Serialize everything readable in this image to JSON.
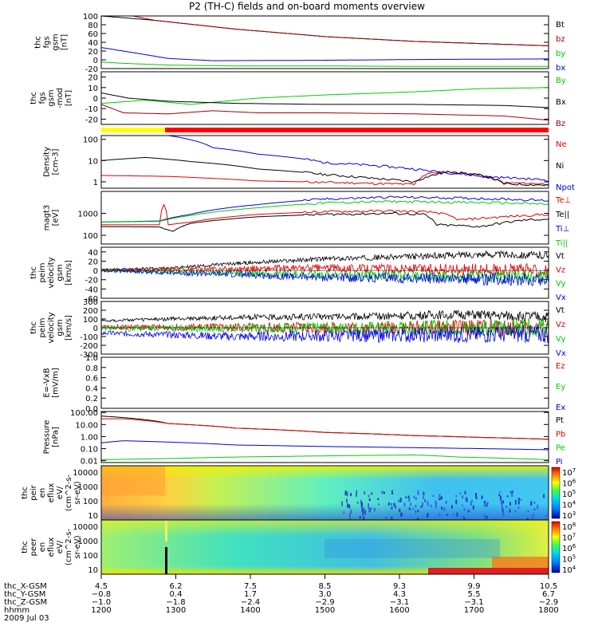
{
  "title": "P2 (TH-C) fields and on-board moments overview",
  "colors": {
    "black": "#000000",
    "red": "#e00000",
    "green": "#00cc00",
    "blue": "#0000e0",
    "darkred": "#a00000",
    "yellow": "#ffff00"
  },
  "chart_data": [
    {
      "type": "line",
      "ylabel": [
        "thc",
        "fgs",
        "gsm",
        "[nT]"
      ],
      "ylim": [
        -20,
        100
      ],
      "yticks": [
        "100",
        "80",
        "60",
        "40",
        "20",
        "0",
        "-20"
      ],
      "series": [
        {
          "name": "Bt",
          "color": "black",
          "values": [
            [
              0,
              100
            ],
            [
              0.12,
              90
            ],
            [
              0.3,
              70
            ],
            [
              0.5,
              53
            ],
            [
              0.7,
              42
            ],
            [
              0.85,
              37
            ],
            [
              1,
              32
            ]
          ]
        },
        {
          "name": "bz",
          "color": "darkred",
          "values": [
            [
              0.07,
              100
            ],
            [
              0.12,
              90
            ],
            [
              0.3,
              70
            ],
            [
              0.5,
              53
            ],
            [
              0.7,
              42
            ],
            [
              0.85,
              37
            ],
            [
              1,
              32
            ]
          ]
        },
        {
          "name": "by",
          "color": "green",
          "values": [
            [
              0,
              -5
            ],
            [
              0.05,
              -8
            ],
            [
              0.15,
              -12
            ],
            [
              0.3,
              -14
            ],
            [
              0.5,
              -14
            ],
            [
              0.7,
              -15
            ],
            [
              1,
              -15
            ]
          ]
        },
        {
          "name": "bx",
          "color": "blue",
          "values": [
            [
              0,
              28
            ],
            [
              0.08,
              15
            ],
            [
              0.15,
              3
            ],
            [
              0.25,
              -2
            ],
            [
              0.5,
              -1
            ],
            [
              0.75,
              1
            ],
            [
              1,
              2
            ]
          ]
        }
      ]
    },
    {
      "type": "line",
      "ylabel": [
        "thc",
        "fgs",
        "gsm",
        "-mod",
        "[nT]"
      ],
      "ylim": [
        -25,
        25
      ],
      "yticks": [
        "20",
        "10",
        "0",
        "-10",
        "-20"
      ],
      "series": [
        {
          "name": "By",
          "color": "green",
          "values": [
            [
              0,
              -5
            ],
            [
              0.1,
              -2
            ],
            [
              0.2,
              -6
            ],
            [
              0.35,
              0
            ],
            [
              0.5,
              3
            ],
            [
              0.7,
              6
            ],
            [
              0.85,
              9
            ],
            [
              1,
              10
            ]
          ]
        },
        {
          "name": "Bx",
          "color": "black",
          "values": [
            [
              0,
              5
            ],
            [
              0.06,
              0
            ],
            [
              0.15,
              -3
            ],
            [
              0.3,
              -5
            ],
            [
              0.5,
              -6
            ],
            [
              0.7,
              -6
            ],
            [
              0.9,
              -7
            ],
            [
              1,
              -9
            ]
          ]
        },
        {
          "name": "Bz",
          "color": "darkred",
          "values": [
            [
              0,
              -6
            ],
            [
              0.05,
              -14
            ],
            [
              0.15,
              -15
            ],
            [
              0.25,
              -12
            ],
            [
              0.35,
              -14
            ],
            [
              0.5,
              -14
            ],
            [
              0.7,
              -15
            ],
            [
              0.9,
              -17
            ],
            [
              1,
              -21
            ]
          ]
        }
      ]
    },
    {
      "type": "line",
      "ylabel": [
        "Density",
        "[cm-3]"
      ],
      "ylog": true,
      "ylim": [
        0.5,
        150
      ],
      "yticks": [
        "100",
        "10",
        "1"
      ],
      "series": [
        {
          "name": "Ne",
          "color": "red",
          "values": [
            [
              0,
              2
            ],
            [
              0.15,
              1.8
            ],
            [
              0.35,
              1.1
            ],
            [
              0.6,
              0.85
            ],
            [
              0.7,
              0.75
            ],
            [
              0.73,
              2.5
            ],
            [
              0.78,
              3
            ],
            [
              0.85,
              2
            ],
            [
              0.9,
              0.9
            ],
            [
              1,
              0.8
            ]
          ]
        },
        {
          "name": "Ni",
          "color": "black",
          "values": [
            [
              0,
              10
            ],
            [
              0.1,
              14
            ],
            [
              0.2,
              9
            ],
            [
              0.35,
              4
            ],
            [
              0.5,
              2.2
            ],
            [
              0.6,
              1.5
            ],
            [
              0.7,
              1
            ],
            [
              0.78,
              3
            ],
            [
              0.85,
              2
            ],
            [
              0.9,
              0.8
            ],
            [
              1,
              0.7
            ]
          ]
        },
        {
          "name": "Npot",
          "color": "blue",
          "values": [
            [
              0.15,
              150
            ],
            [
              0.25,
              40
            ],
            [
              0.35,
              20
            ],
            [
              0.5,
              8
            ],
            [
              0.65,
              5
            ],
            [
              0.75,
              3
            ],
            [
              0.85,
              1.8
            ],
            [
              1,
              1.2
            ]
          ]
        }
      ]
    },
    {
      "type": "line",
      "ylabel": [
        "magt3",
        "[eV]"
      ],
      "ylog": true,
      "ylim": [
        40,
        10000
      ],
      "yticks": [
        "1000",
        "100"
      ],
      "series": [
        {
          "name": "Te⊥",
          "color": "red",
          "values": [
            [
              0,
              300
            ],
            [
              0.13,
              300
            ],
            [
              0.14,
              2500
            ],
            [
              0.15,
              300
            ],
            [
              0.2,
              400
            ],
            [
              0.35,
              900
            ],
            [
              0.5,
              1200
            ],
            [
              0.65,
              1300
            ],
            [
              0.75,
              1100
            ],
            [
              0.8,
              500
            ],
            [
              0.9,
              700
            ],
            [
              1,
              900
            ]
          ]
        },
        {
          "name": "Te||",
          "color": "black",
          "values": [
            [
              0,
              250
            ],
            [
              0.13,
              240
            ],
            [
              0.14,
              200
            ],
            [
              0.16,
              150
            ],
            [
              0.2,
              350
            ],
            [
              0.35,
              700
            ],
            [
              0.5,
              900
            ],
            [
              0.65,
              1000
            ],
            [
              0.72,
              900
            ],
            [
              0.75,
              300
            ],
            [
              0.85,
              250
            ],
            [
              0.95,
              500
            ],
            [
              1,
              550
            ]
          ]
        },
        {
          "name": "Ti⊥",
          "color": "blue",
          "values": [
            [
              0,
              400
            ],
            [
              0.13,
              450
            ],
            [
              0.2,
              900
            ],
            [
              0.35,
              2500
            ],
            [
              0.5,
              4500
            ],
            [
              0.65,
              5500
            ],
            [
              0.8,
              5000
            ],
            [
              0.9,
              4500
            ],
            [
              1,
              3800
            ]
          ]
        },
        {
          "name": "Ti||",
          "color": "green",
          "values": [
            [
              0,
              400
            ],
            [
              0.13,
              430
            ],
            [
              0.2,
              800
            ],
            [
              0.35,
              1800
            ],
            [
              0.5,
              3000
            ],
            [
              0.65,
              3500
            ],
            [
              0.8,
              3200
            ],
            [
              0.9,
              3000
            ],
            [
              1,
              2600
            ]
          ]
        }
      ]
    },
    {
      "type": "line",
      "ylabel": [
        "thc",
        "peim",
        "velocity",
        "gsm",
        "[km/s]"
      ],
      "ylim": [
        -60,
        50
      ],
      "yticks": [
        "40",
        "20",
        "0",
        "-20",
        "-40",
        "-60"
      ],
      "series": [
        {
          "name": "Vt",
          "color": "black",
          "values": [
            [
              0,
              2
            ],
            [
              0.15,
              5
            ],
            [
              0.3,
              15
            ],
            [
              0.5,
              25
            ],
            [
              0.7,
              30
            ],
            [
              0.85,
              35
            ],
            [
              1,
              32
            ]
          ]
        },
        {
          "name": "Vz",
          "color": "red",
          "values": [
            [
              0,
              0
            ],
            [
              0.5,
              5
            ],
            [
              1,
              0
            ]
          ]
        },
        {
          "name": "Vy",
          "color": "green",
          "values": [
            [
              0,
              0
            ],
            [
              0.5,
              -10
            ],
            [
              1,
              -15
            ]
          ]
        },
        {
          "name": "Vx",
          "color": "blue",
          "values": [
            [
              0,
              0
            ],
            [
              0.5,
              -15
            ],
            [
              1,
              -20
            ]
          ]
        }
      ]
    },
    {
      "type": "line",
      "ylabel": [
        "thc",
        "peim",
        "velocity",
        "gsm",
        "[km/s]"
      ],
      "ylim": [
        -300,
        300
      ],
      "yticks": [
        "300",
        "200",
        "100",
        "0",
        "-100",
        "-200",
        "-300"
      ],
      "series": [
        {
          "name": "Vt",
          "color": "black",
          "values": [
            [
              0,
              80
            ],
            [
              0.3,
              120
            ],
            [
              0.6,
              130
            ],
            [
              0.8,
              150
            ],
            [
              1,
              120
            ]
          ]
        },
        {
          "name": "Vz",
          "color": "red",
          "values": [
            [
              0,
              10
            ],
            [
              0.5,
              0
            ],
            [
              1,
              0
            ]
          ]
        },
        {
          "name": "Vy",
          "color": "green",
          "values": [
            [
              0,
              -10
            ],
            [
              0.5,
              0
            ],
            [
              1,
              0
            ]
          ]
        },
        {
          "name": "Vx",
          "color": "blue",
          "values": [
            [
              0,
              -60
            ],
            [
              0.3,
              -100
            ],
            [
              0.6,
              -90
            ],
            [
              1,
              -70
            ]
          ]
        }
      ]
    },
    {
      "type": "line",
      "ylabel": [
        "E=-VxB",
        "[mV/m]"
      ],
      "ylim": [
        0.0,
        1.0
      ],
      "yticks": [
        "1.0",
        "0.8",
        "0.6",
        "0.4",
        "0.2",
        "0.0"
      ],
      "series": [
        {
          "name": "Ez",
          "color": "red",
          "values": []
        },
        {
          "name": "Ey",
          "color": "green",
          "values": []
        },
        {
          "name": "Ex",
          "color": "blue",
          "values": []
        }
      ]
    },
    {
      "type": "line",
      "ylabel": [
        "Pressure",
        "[nPa]"
      ],
      "ylog": true,
      "ylim": [
        0.007,
        120
      ],
      "yticks": [
        "100.00",
        "10.00",
        "1.00",
        "0.10",
        "0.01"
      ],
      "series": [
        {
          "name": "Pt",
          "color": "black",
          "values": [
            [
              0,
              50
            ],
            [
              0.15,
              12
            ],
            [
              0.3,
              5
            ],
            [
              0.5,
              2.2
            ],
            [
              0.7,
              1.2
            ],
            [
              0.85,
              0.85
            ],
            [
              1,
              0.6
            ]
          ]
        },
        {
          "name": "Pb",
          "color": "red",
          "values": [
            [
              0.05,
              30
            ],
            [
              0.15,
              12
            ],
            [
              0.3,
              5
            ],
            [
              0.5,
              2.2
            ],
            [
              0.7,
              1.2
            ],
            [
              0.85,
              0.85
            ],
            [
              1,
              0.6
            ]
          ]
        },
        {
          "name": "Pe",
          "color": "green",
          "values": [
            [
              0,
              0.012
            ],
            [
              0.15,
              0.015
            ],
            [
              0.3,
              0.02
            ],
            [
              0.5,
              0.025
            ],
            [
              0.7,
              0.03
            ],
            [
              0.8,
              0.02
            ],
            [
              1,
              0.012
            ]
          ]
        },
        {
          "name": "Pi",
          "color": "blue",
          "values": [
            [
              0,
              0.3
            ],
            [
              0.05,
              0.45
            ],
            [
              0.15,
              0.35
            ],
            [
              0.3,
              0.2
            ],
            [
              0.5,
              0.15
            ],
            [
              0.7,
              0.12
            ],
            [
              0.85,
              0.1
            ],
            [
              1,
              0.08
            ]
          ]
        }
      ]
    },
    {
      "type": "heatmap",
      "ylabel": [
        "thc",
        "peir",
        "en",
        "eflux",
        "eV/",
        "(cm^2-s-",
        "sr-eV)"
      ],
      "ylog": true,
      "yticks": [
        "10000",
        "1000",
        "100",
        "10"
      ],
      "cbar_labels": [
        "10^7",
        "10^6",
        "10^5",
        "10^4",
        "10^3"
      ]
    },
    {
      "type": "heatmap",
      "ylabel": [
        "thc",
        "peer",
        "en",
        "eflux",
        "eV/",
        "(cm^2-s-",
        "sr-eV)"
      ],
      "ylog": true,
      "yticks": [
        "10000",
        "1000",
        "100",
        "10"
      ],
      "cbar_labels": [
        "10^8",
        "10^7",
        "10^6",
        "10^5",
        "10^4"
      ]
    }
  ],
  "xaxis": {
    "row_labels": [
      "thc_X-GSM",
      "thc_Y-GSM",
      "thc_Z-GSM",
      "hhmm",
      "2009 Jul 03"
    ],
    "columns": [
      [
        "4.5",
        "−0.8",
        "−1.0",
        "1200"
      ],
      [
        "6.2",
        "0.4",
        "−1.8",
        "1300"
      ],
      [
        "7.5",
        "1.7",
        "−2.4",
        "1400"
      ],
      [
        "8.5",
        "3.0",
        "−2.9",
        "1500"
      ],
      [
        "9.3",
        "4.3",
        "−3.1",
        "1600"
      ],
      [
        "9.9",
        "5.5",
        "−3.1",
        "1700"
      ],
      [
        "10.5",
        "6.7",
        "−2.9",
        "1800"
      ]
    ]
  }
}
